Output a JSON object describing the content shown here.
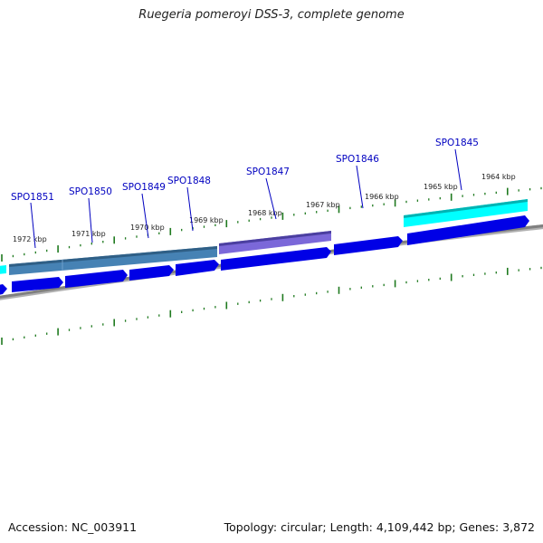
{
  "title": "Ruegeria pomeroyi DSS-3, complete genome",
  "accession": "Accession: NC_003911",
  "summary": "Topology: circular; Length: 4,109,442 bp; Genes: 3,872",
  "colors": {
    "backbone": "#808080",
    "tick": "#1f7a1f",
    "cds": "#0000e6",
    "feature_steel": "#4682b4",
    "feature_slate": "#6a5acd",
    "feature_cyan": "#00ffff",
    "label": "#0000c0"
  },
  "ticks": [
    "1964 kbp",
    "1965 kbp",
    "1966 kbp",
    "1967 kbp",
    "1968 kbp",
    "1969 kbp",
    "1970 kbp",
    "1971 kbp",
    "1972 kbp"
  ],
  "genes": [
    "SPO1845",
    "SPO1846",
    "SPO1847",
    "SPO1848",
    "SPO1849",
    "SPO1850",
    "SPO1851"
  ]
}
